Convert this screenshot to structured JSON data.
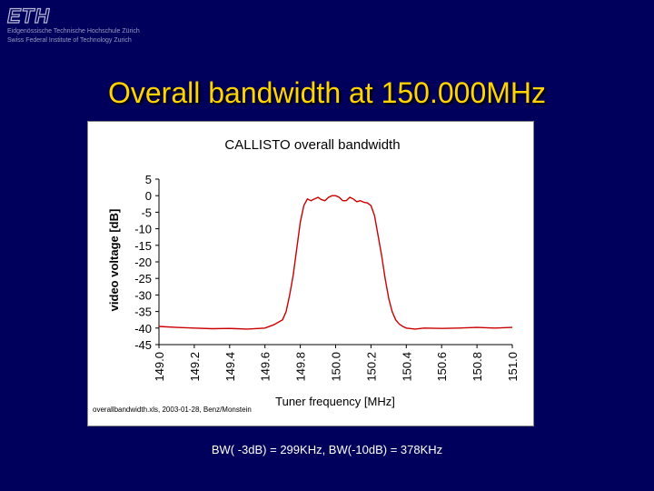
{
  "logo": {
    "mark": "ETH",
    "line1": "Eidgenössische Technische Hochschule Zürich",
    "line2": "Swiss Federal Institute of Technology Zurich"
  },
  "slide_title": "Overall bandwidth at 150.000MHz",
  "caption": "BW( -3dB) = 299KHz, BW(-10dB) = 378KHz",
  "colors": {
    "background": "#00005c",
    "title": "#ffd400",
    "series": "#cc0000"
  },
  "chart_data": {
    "type": "line",
    "title": "CALLISTO overall bandwidth",
    "xlabel": "Tuner frequency [MHz]",
    "ylabel": "video voltage [dB]",
    "footnote": "overallbandwidth.xls, 2003-01-28, Benz/Monstein",
    "xlim": [
      149.0,
      151.0
    ],
    "ylim": [
      -45,
      5
    ],
    "x_ticks": [
      "149.0",
      "149.2",
      "149.4",
      "149.6",
      "149.8",
      "150.0",
      "150.2",
      "150.4",
      "150.6",
      "150.8",
      "151.0"
    ],
    "y_ticks": [
      "5",
      "0",
      "-5",
      "-10",
      "-15",
      "-20",
      "-25",
      "-30",
      "-35",
      "-40",
      "-45"
    ],
    "grid": false,
    "legend": "none",
    "series": [
      {
        "x": [
          149.0,
          149.1,
          149.2,
          149.3,
          149.4,
          149.5,
          149.6,
          149.65,
          149.7,
          149.72,
          149.74,
          149.76,
          149.78,
          149.8,
          149.82,
          149.84,
          149.86,
          149.88,
          149.9,
          149.92,
          149.94,
          149.96,
          149.98,
          150.0,
          150.02,
          150.04,
          150.06,
          150.08,
          150.1,
          150.12,
          150.14,
          150.16,
          150.18,
          150.2,
          150.22,
          150.24,
          150.26,
          150.28,
          150.3,
          150.32,
          150.34,
          150.36,
          150.38,
          150.4,
          150.45,
          150.5,
          150.6,
          150.7,
          150.8,
          150.9,
          151.0
        ],
        "y": [
          -39.5,
          -39.8,
          -40.0,
          -40.2,
          -40.1,
          -40.3,
          -40.0,
          -39.0,
          -37.5,
          -35.0,
          -30.0,
          -24.0,
          -16.0,
          -8.0,
          -3.0,
          -1.0,
          -1.5,
          -1.0,
          -0.5,
          -1.2,
          -1.5,
          -0.5,
          0.0,
          0.0,
          -0.5,
          -1.5,
          -1.5,
          -0.5,
          -1.0,
          -1.8,
          -1.5,
          -2.0,
          -2.2,
          -3.0,
          -6.0,
          -12.0,
          -18.0,
          -25.0,
          -31.0,
          -35.0,
          -37.5,
          -38.8,
          -39.5,
          -40.0,
          -40.3,
          -40.0,
          -40.1,
          -40.0,
          -39.8,
          -40.0,
          -39.8
        ]
      }
    ]
  }
}
